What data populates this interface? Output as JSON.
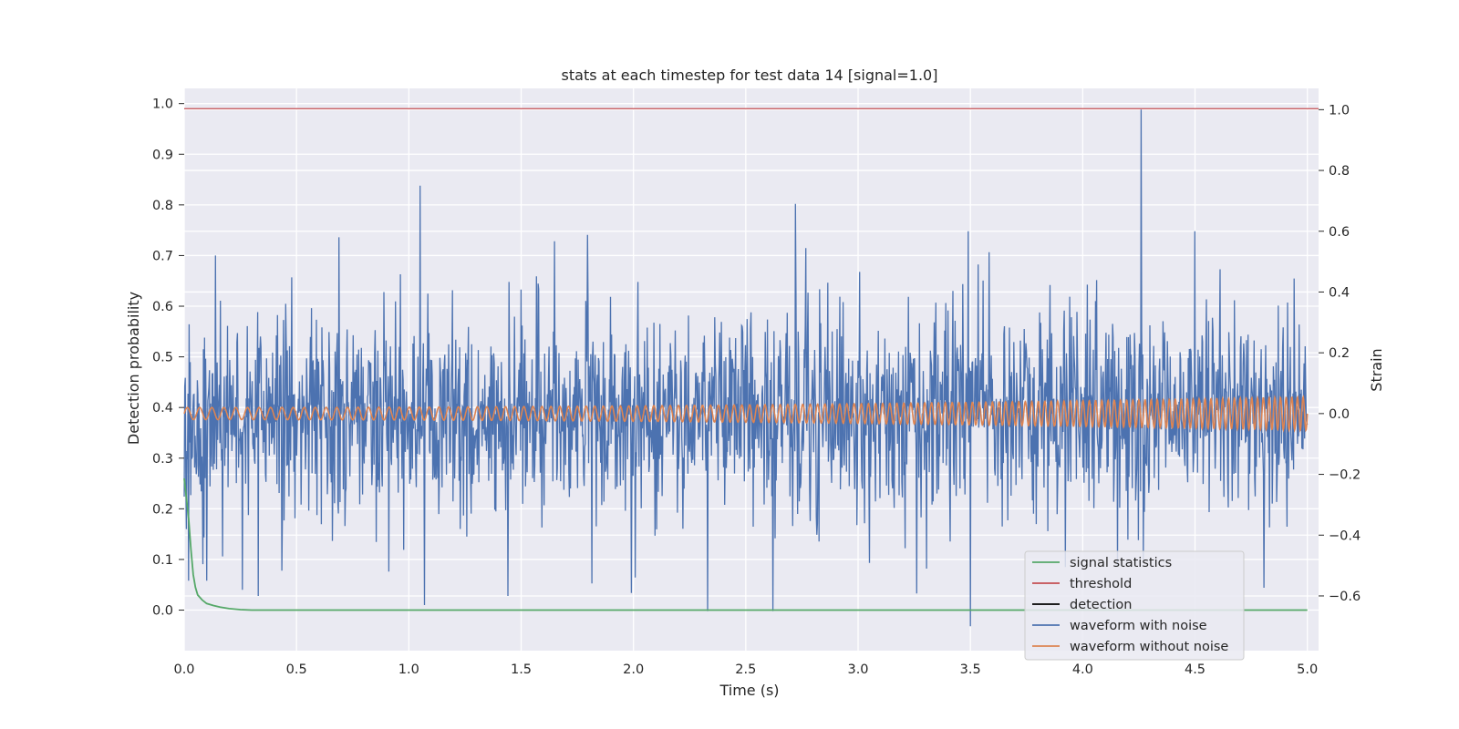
{
  "chart_data": {
    "type": "line",
    "title": "stats at each timestep for test data 14 [signal=1.0]",
    "xlabel": "Time (s)",
    "ylabel": "Detection probability",
    "y2label": "Strain",
    "xlim": [
      0.0,
      5.05
    ],
    "ylim": [
      -0.08,
      1.03
    ],
    "y2lim": [
      -0.78,
      1.07
    ],
    "xticks": [
      0.0,
      0.5,
      1.0,
      1.5,
      2.0,
      2.5,
      3.0,
      3.5,
      4.0,
      4.5,
      5.0
    ],
    "xtick_labels": [
      "0.0",
      "0.5",
      "1.0",
      "1.5",
      "2.0",
      "2.5",
      "3.0",
      "3.5",
      "4.0",
      "4.5",
      "5.0"
    ],
    "yticks": [
      0.0,
      0.1,
      0.2,
      0.3,
      0.4,
      0.5,
      0.6,
      0.7,
      0.8,
      0.9,
      1.0
    ],
    "ytick_labels": [
      "0.0",
      "0.1",
      "0.2",
      "0.3",
      "0.4",
      "0.5",
      "0.6",
      "0.7",
      "0.8",
      "0.9",
      "1.0"
    ],
    "y2ticks": [
      -0.6,
      -0.4,
      -0.2,
      0.0,
      0.2,
      0.4,
      0.6,
      0.8,
      1.0
    ],
    "y2tick_labels": [
      "−0.6",
      "−0.4",
      "−0.2",
      "0.0",
      "0.2",
      "0.4",
      "0.6",
      "0.8",
      "1.0"
    ],
    "grid": true,
    "legend_position": "lower-right",
    "colors": {
      "axes_bg": "#eaeaf2",
      "grid": "#ffffff",
      "signal_statistics": "#55a868",
      "threshold": "#c44e52",
      "detection": "#000000",
      "waveform_with_noise": "#4c72b0",
      "waveform_without_noise": "#dd8452"
    },
    "series": [
      {
        "name": "signal statistics",
        "axis": "left",
        "x": [
          0.0,
          0.01,
          0.02,
          0.03,
          0.04,
          0.05,
          0.06,
          0.08,
          0.1,
          0.13,
          0.16,
          0.2,
          0.25,
          0.3,
          1.0,
          2.0,
          3.0,
          3.5,
          4.0,
          4.5,
          5.0
        ],
        "values": [
          0.26,
          0.22,
          0.18,
          0.12,
          0.07,
          0.045,
          0.03,
          0.02,
          0.013,
          0.009,
          0.006,
          0.003,
          0.001,
          0.0,
          0.0,
          0.0,
          0.0,
          0.0,
          0.0,
          0.0,
          0.0
        ]
      },
      {
        "name": "threshold",
        "axis": "left",
        "x": [
          0.0,
          5.05
        ],
        "values": [
          0.99,
          0.99
        ]
      },
      {
        "name": "detection",
        "axis": "left",
        "x": [],
        "values": []
      },
      {
        "name": "waveform with noise",
        "axis": "right",
        "description_stats": {
          "baseline": 0.0,
          "typical_amplitude": 0.17,
          "samples": 2048
        },
        "x": [
          0.01,
          0.02,
          0.14,
          0.17,
          0.26,
          0.33,
          0.69,
          0.89,
          0.91,
          1.05,
          1.07,
          1.44,
          2.33,
          2.62,
          2.72,
          3.49,
          3.5,
          4.26,
          4.27,
          4.5
        ],
        "values": [
          -0.38,
          -0.55,
          0.52,
          -0.47,
          -0.58,
          -0.6,
          0.58,
          0.4,
          -0.52,
          0.75,
          -0.63,
          -0.6,
          -0.65,
          -0.65,
          0.69,
          0.6,
          -0.7,
          1.0,
          -0.48,
          0.6
        ]
      },
      {
        "name": "waveform without noise",
        "axis": "right",
        "f0": 18.0,
        "f1": 40.0,
        "amp0": 0.02,
        "amp1": 0.055,
        "x": [
          0.0,
          1.0,
          2.0,
          3.0,
          4.0,
          4.5,
          5.0
        ],
        "values": [
          0.02,
          0.022,
          0.025,
          0.03,
          0.04,
          0.047,
          0.055
        ]
      }
    ]
  }
}
